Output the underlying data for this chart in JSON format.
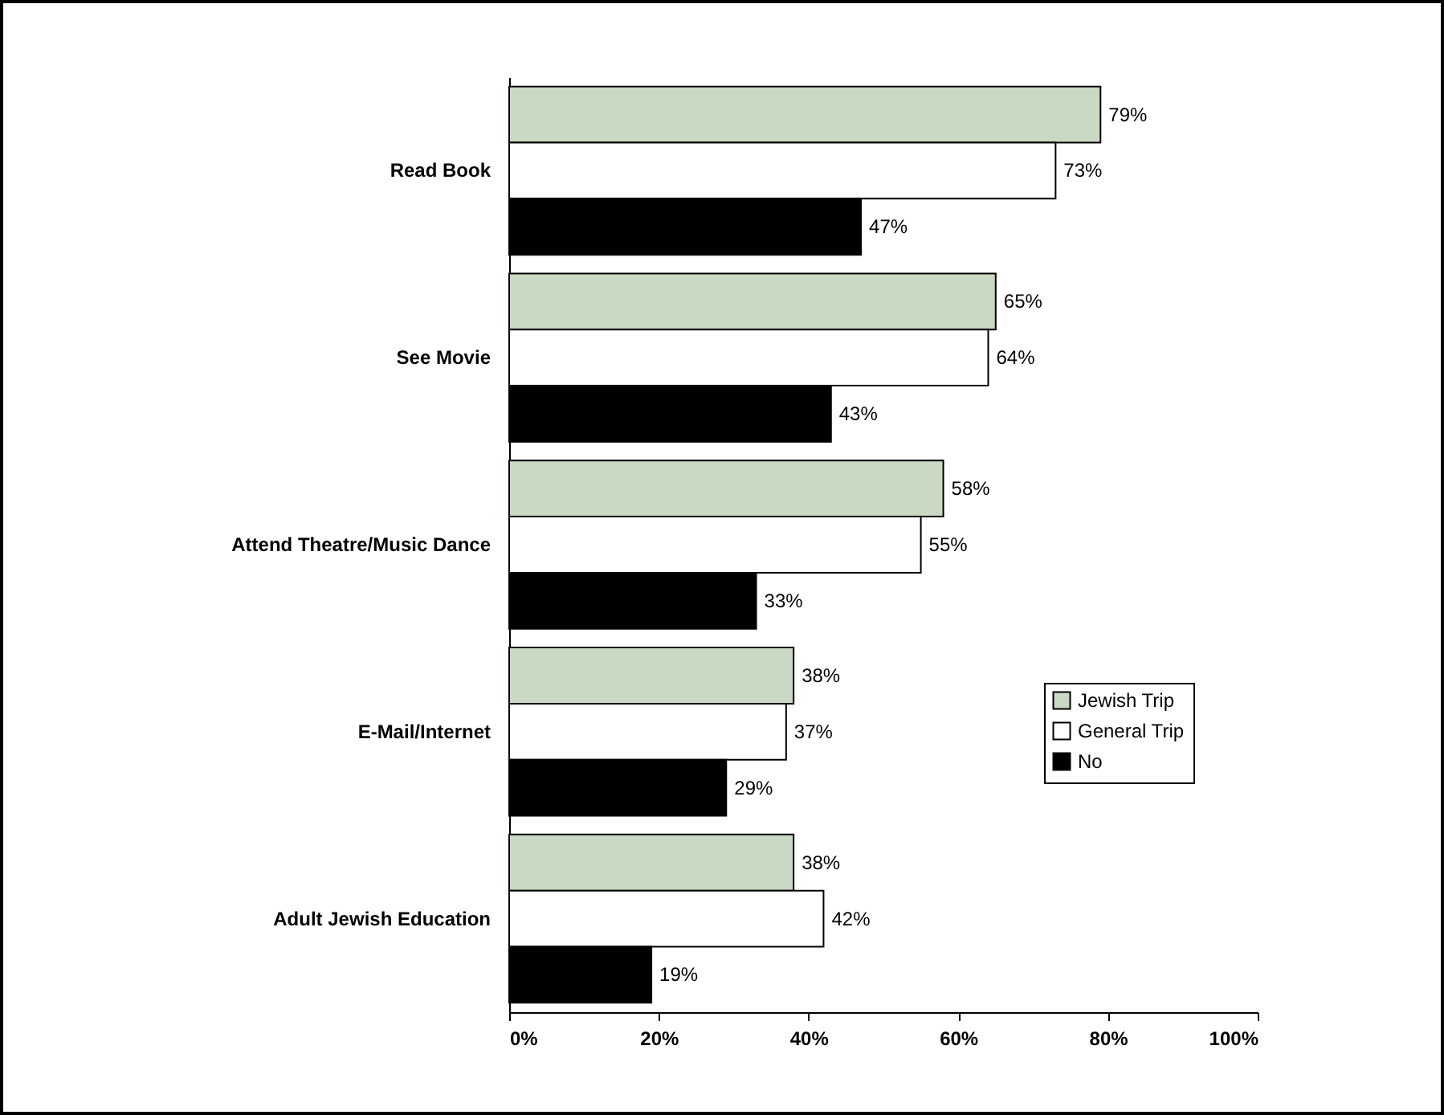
{
  "chart_data": {
    "type": "bar",
    "orientation": "horizontal",
    "categories": [
      "Read Book",
      "See Movie",
      "Attend Theatre/Music Dance",
      "E-Mail/Internet",
      "Adult Jewish Education"
    ],
    "series": [
      {
        "name": "Jewish Trip",
        "color": "#c9d9c3",
        "values": [
          79,
          65,
          58,
          38,
          38
        ],
        "value_labels": [
          "79%",
          "65%",
          "58%",
          "38%",
          "38%"
        ]
      },
      {
        "name": "General Trip",
        "color": "#ffffff",
        "values": [
          73,
          64,
          55,
          37,
          42
        ],
        "value_labels": [
          "73%",
          "64%",
          "55%",
          "37%",
          "42%"
        ]
      },
      {
        "name": "No",
        "color": "#000000",
        "values": [
          47,
          43,
          33,
          29,
          19
        ],
        "value_labels": [
          "47%",
          "43%",
          "33%",
          "29%",
          "19%"
        ]
      }
    ],
    "xlim": [
      0,
      100
    ],
    "xticks": [
      {
        "value": 0,
        "label": "0%"
      },
      {
        "value": 20,
        "label": "20%"
      },
      {
        "value": 40,
        "label": "40%"
      },
      {
        "value": 60,
        "label": "60%"
      },
      {
        "value": 80,
        "label": "80%"
      },
      {
        "value": 100,
        "label": "100%"
      }
    ],
    "grid": false,
    "legend": "right"
  }
}
